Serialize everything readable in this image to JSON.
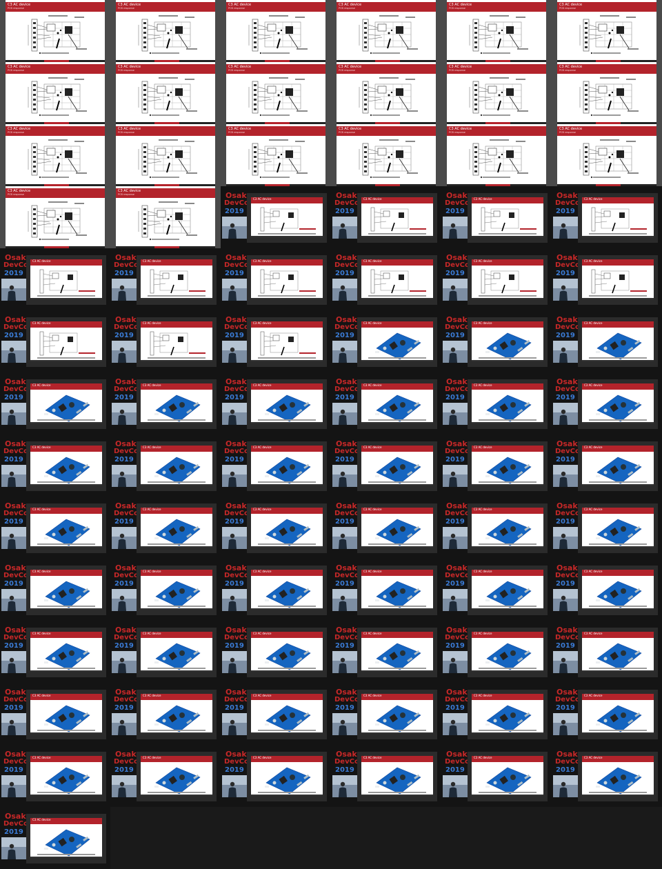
{
  "contact_sheet": {
    "columns": 6,
    "slide_frame": {
      "title": "C3 AC device",
      "subtitle": "PCB response",
      "footer_color": "#b3232b",
      "count": 20
    },
    "video_frame": {
      "logo": {
        "line1": "Osaka",
        "line2": "DevCon",
        "line3": "2019"
      },
      "logo_colors": {
        "red": "#c62828",
        "blue": "#3a7bd5"
      },
      "slide_kinds": [
        "diagram",
        "board"
      ],
      "count": 59,
      "diagram_count": 13
    },
    "colors": {
      "sheet_bg": "#4a4a4a",
      "video_bg": "#1a1a1a",
      "slide_title_bar": "#b3232b",
      "board": "#1565c0"
    }
  }
}
